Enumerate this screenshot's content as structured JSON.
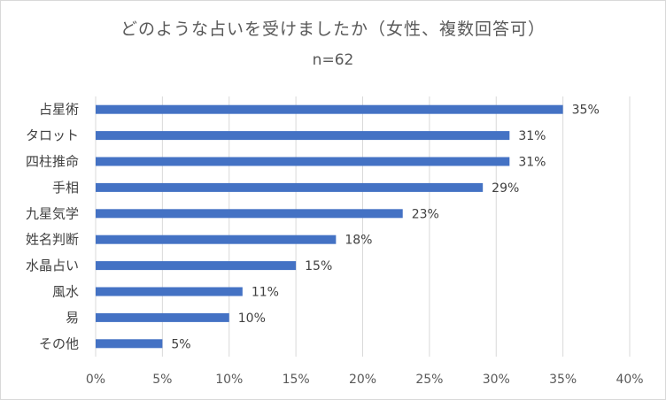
{
  "chart_data": {
    "type": "bar",
    "orientation": "horizontal",
    "title": "どのような占いを受けましたか（女性、複数回答可）",
    "subtitle": "n=62",
    "categories": [
      "占星術",
      "タロット",
      "四柱推命",
      "手相",
      "九星気学",
      "姓名判断",
      "水晶占い",
      "風水",
      "易",
      "その他"
    ],
    "values": [
      35,
      31,
      31,
      29,
      23,
      18,
      15,
      11,
      10,
      5
    ],
    "value_labels": [
      "35%",
      "31%",
      "31%",
      "29%",
      "23%",
      "18%",
      "15%",
      "11%",
      "10%",
      "5%"
    ],
    "xlim": [
      0,
      40
    ],
    "xticks": [
      0,
      5,
      10,
      15,
      20,
      25,
      30,
      35,
      40
    ],
    "xtick_labels": [
      "0%",
      "5%",
      "10%",
      "15%",
      "20%",
      "25%",
      "30%",
      "35%",
      "40%"
    ],
    "grid": true,
    "bar_color": "#4472c4",
    "grid_color": "#d9d9d9"
  }
}
